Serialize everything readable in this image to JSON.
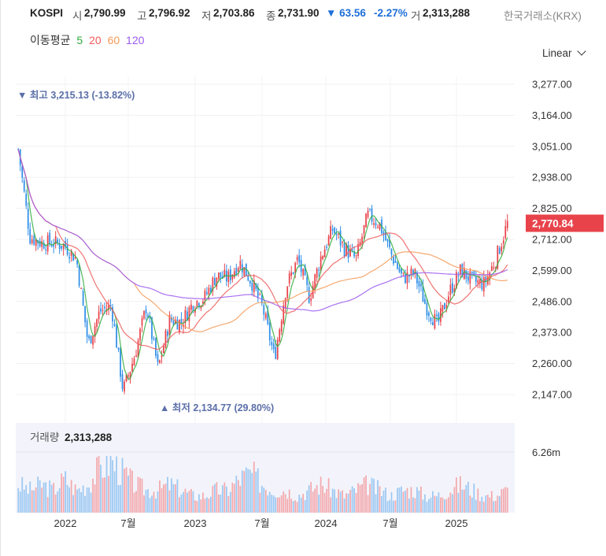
{
  "header": {
    "symbol": "KOSPI",
    "open_label": "시",
    "open": "2,790.99",
    "high_label": "고",
    "high": "2,796.92",
    "low_label": "저",
    "low": "2,703.86",
    "close_label": "종",
    "close": "2,731.90",
    "change": "▼ 63.56",
    "change_pct": "-2.27%",
    "volume_label": "거",
    "volume": "2,313,288",
    "exchange": "한국거래소(KRX)"
  },
  "moving_average": {
    "label": "이동평균",
    "periods": [
      {
        "label": "5",
        "color": "#2eab3a"
      },
      {
        "label": "20",
        "color": "#f05a5a"
      },
      {
        "label": "60",
        "color": "#f59a57"
      },
      {
        "label": "120",
        "color": "#9b59f0"
      }
    ]
  },
  "scale_selector": {
    "label": "Linear"
  },
  "colors": {
    "up": "#e8434b",
    "down": "#2f8fe8",
    "grid": "#f0f0f0",
    "current_price_bg": "#e8434b",
    "annotation": "#5b6fa8",
    "volume_bg": "#f3f4fb"
  },
  "chart_data": {
    "type": "candlestick",
    "y_ticks": [
      "3,277.00",
      "3,164.00",
      "3,051.00",
      "2,938.00",
      "2,825.00",
      "2,712.00",
      "2,599.00",
      "2,486.00",
      "2,373.00",
      "2,260.00",
      "2,147.00"
    ],
    "ylim": [
      2100,
      3300
    ],
    "x_ticks": [
      "2022",
      "7월",
      "2023",
      "7월",
      "2024",
      "7월",
      "2025"
    ],
    "current_price_label": "2,770.84",
    "current_price": 2770.84,
    "high_annotation": "▼ 최고 3,215.13 (-13.82%)",
    "low_annotation": "▲ 최저 2,134.77 (29.80%)",
    "price_path": [
      {
        "date": "2021-12",
        "value": 3040
      },
      {
        "date": "2022-01",
        "value": 2720
      },
      {
        "date": "2022-02",
        "value": 2700
      },
      {
        "date": "2022-03",
        "value": 2700
      },
      {
        "date": "2022-04",
        "value": 2690
      },
      {
        "date": "2022-05",
        "value": 2640
      },
      {
        "date": "2022-06",
        "value": 2330
      },
      {
        "date": "2022-07",
        "value": 2450
      },
      {
        "date": "2022-08",
        "value": 2470
      },
      {
        "date": "2022-09",
        "value": 2160
      },
      {
        "date": "2022-10",
        "value": 2290
      },
      {
        "date": "2022-11",
        "value": 2470
      },
      {
        "date": "2022-12",
        "value": 2240
      },
      {
        "date": "2023-01",
        "value": 2420
      },
      {
        "date": "2023-02",
        "value": 2410
      },
      {
        "date": "2023-03",
        "value": 2480
      },
      {
        "date": "2023-04",
        "value": 2500
      },
      {
        "date": "2023-05",
        "value": 2580
      },
      {
        "date": "2023-06",
        "value": 2570
      },
      {
        "date": "2023-07",
        "value": 2630
      },
      {
        "date": "2023-08",
        "value": 2560
      },
      {
        "date": "2023-09",
        "value": 2460
      },
      {
        "date": "2023-10",
        "value": 2280
      },
      {
        "date": "2023-11",
        "value": 2540
      },
      {
        "date": "2023-12",
        "value": 2640
      },
      {
        "date": "2024-01",
        "value": 2500
      },
      {
        "date": "2024-02",
        "value": 2650
      },
      {
        "date": "2024-03",
        "value": 2750
      },
      {
        "date": "2024-04",
        "value": 2680
      },
      {
        "date": "2024-05",
        "value": 2640
      },
      {
        "date": "2024-06",
        "value": 2800
      },
      {
        "date": "2024-07",
        "value": 2770
      },
      {
        "date": "2024-08",
        "value": 2660
      },
      {
        "date": "2024-09",
        "value": 2570
      },
      {
        "date": "2024-10",
        "value": 2590
      },
      {
        "date": "2024-11",
        "value": 2470
      },
      {
        "date": "2024-12",
        "value": 2400
      },
      {
        "date": "2025-01",
        "value": 2520
      },
      {
        "date": "2025-02",
        "value": 2600
      },
      {
        "date": "2025-03",
        "value": 2560
      },
      {
        "date": "2025-04",
        "value": 2550
      },
      {
        "date": "2025-05",
        "value": 2640
      },
      {
        "date": "2025-06",
        "value": 2770
      }
    ],
    "volume_label": "거래량",
    "volume_value": "2,313,288",
    "volume_tick": "6.26m",
    "volume_path": [
      5,
      4,
      5,
      4,
      6,
      4,
      5,
      8,
      9,
      7,
      5,
      4,
      4,
      5,
      4,
      3,
      3,
      4,
      4,
      6,
      7,
      5,
      4,
      4,
      3,
      4,
      5,
      4,
      3,
      4,
      5,
      4,
      3,
      4,
      4,
      3,
      3,
      4,
      5,
      4,
      3,
      3,
      4
    ]
  }
}
